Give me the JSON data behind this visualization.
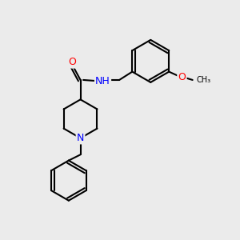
{
  "background_color": "#ebebeb",
  "bond_color": "#000000",
  "bond_width": 1.5,
  "atom_colors": {
    "O": "#ff0000",
    "N": "#0000ff",
    "C": "#000000",
    "H": "#5f9ea0"
  },
  "font_size": 9,
  "figure_size": [
    3.0,
    3.0
  ],
  "dpi": 100
}
